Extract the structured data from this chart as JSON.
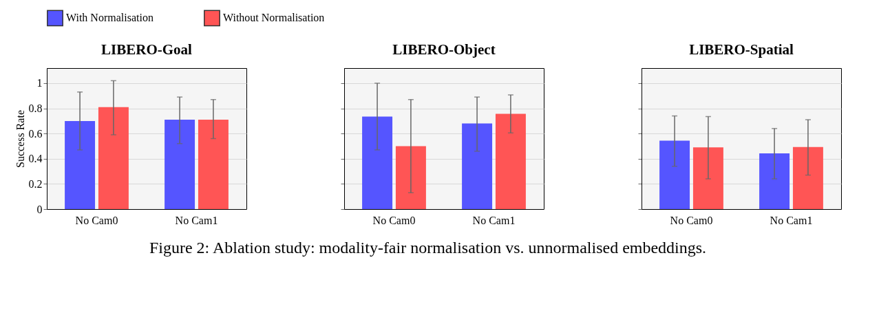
{
  "chart_data": [
    {
      "type": "bar",
      "title": "LIBERO-Goal",
      "ylabel": "Success Rate",
      "categories": [
        "No Cam0",
        "No Cam1"
      ],
      "ylim": [
        0,
        1.12
      ],
      "yticks": [
        0,
        0.2,
        0.4,
        0.6,
        0.8,
        1
      ],
      "grid": "y",
      "legend": "top",
      "annotations": [
        "Figure 2: Ablation study: modality-fair normalisation vs. unnormalised embeddings."
      ],
      "series": [
        {
          "name": "With Normalisation",
          "color": "#5555ff",
          "values": [
            0.7,
            0.71
          ],
          "errors": [
            [
              0.47,
              0.93
            ],
            [
              0.52,
              0.89
            ]
          ]
        },
        {
          "name": "Without Normalisation",
          "color": "#ff5555",
          "values": [
            0.81,
            0.71
          ],
          "errors": [
            [
              0.59,
              1.02
            ],
            [
              0.56,
              0.87
            ]
          ]
        }
      ]
    },
    {
      "type": "bar",
      "title": "LIBERO-Object",
      "categories": [
        "No Cam0",
        "No Cam1"
      ],
      "ylim": [
        0,
        1.12
      ],
      "yticks": [
        0,
        0.2,
        0.4,
        0.6,
        0.8,
        1
      ],
      "grid": "y",
      "tick_labels": "x",
      "series": [
        {
          "name": "With Normalisation",
          "color": "#5555ff",
          "values": [
            0.735,
            0.68
          ],
          "errors": [
            [
              0.47,
              1.0
            ],
            [
              0.46,
              0.89
            ]
          ]
        },
        {
          "name": "Without Normalisation",
          "color": "#ff5555",
          "values": [
            0.5,
            0.757
          ],
          "errors": [
            [
              0.13,
              0.87
            ],
            [
              0.605,
              0.907
            ]
          ]
        }
      ]
    },
    {
      "type": "bar",
      "title": "LIBERO-Spatial",
      "categories": [
        "No Cam0",
        "No Cam1"
      ],
      "ylim": [
        0,
        1.12
      ],
      "yticks": [
        0,
        0.2,
        0.4,
        0.6,
        0.8,
        1
      ],
      "grid": "y",
      "tick_labels": "x",
      "series": [
        {
          "name": "With Normalisation",
          "color": "#5555ff",
          "values": [
            0.543,
            0.443
          ],
          "errors": [
            [
              0.34,
              0.74
            ],
            [
              0.24,
              0.64
            ]
          ]
        },
        {
          "name": "Without Normalisation",
          "color": "#ff5555",
          "values": [
            0.49,
            0.493
          ],
          "errors": [
            [
              0.24,
              0.735
            ],
            [
              0.27,
              0.71
            ]
          ]
        }
      ]
    }
  ]
}
